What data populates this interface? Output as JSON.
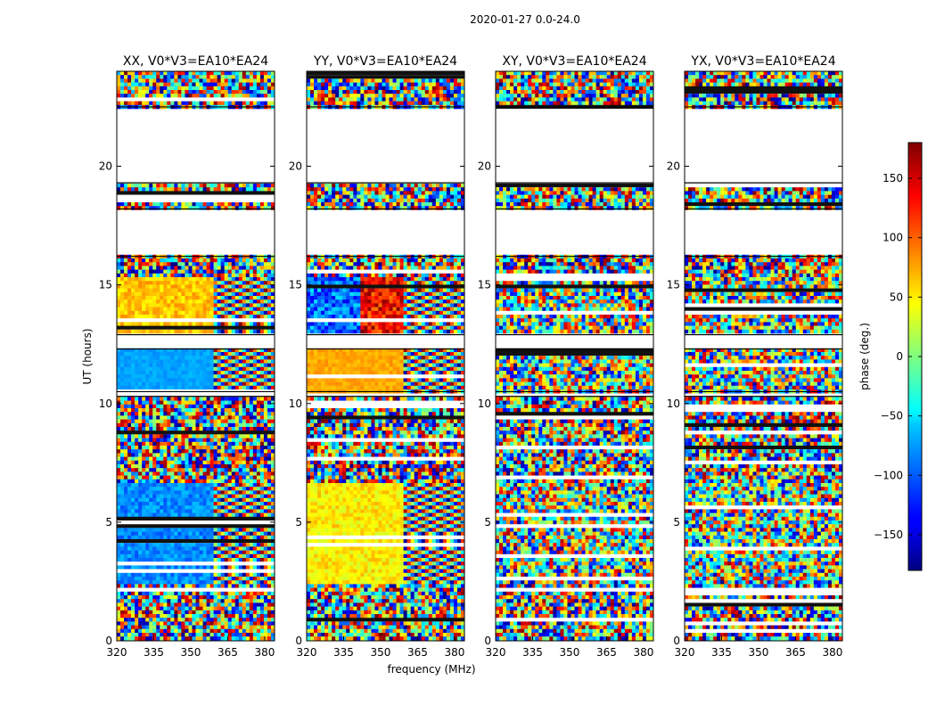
{
  "chart_data": {
    "type": "heatmap",
    "suptitle": "2020-01-27 0.0-24.0",
    "xlabel": "frequency (MHz)",
    "ylabel": "UT (hours)",
    "xlim": [
      320,
      384
    ],
    "ylim": [
      0,
      24
    ],
    "x_ticks": [
      320,
      335,
      350,
      365,
      380
    ],
    "y_ticks": [
      0,
      5,
      10,
      15,
      20
    ],
    "panels": [
      {
        "title": "XX, V0*V3=EA10*EA24",
        "pol": "XX",
        "mode": "xx"
      },
      {
        "title": "YY, V0*V3=EA10*EA24",
        "pol": "YY",
        "mode": "yy"
      },
      {
        "title": "XY, V0*V3=EA10*EA24",
        "pol": "XY",
        "mode": "noise"
      },
      {
        "title": "YX, V0*V3=EA10*EA24",
        "pol": "YX",
        "mode": "noise"
      }
    ],
    "colorbar": {
      "label": "phase (deg.)",
      "range": [
        -180,
        180
      ],
      "ticks": [
        150,
        100,
        50,
        0,
        -50,
        -100,
        -150
      ],
      "tick_labels": [
        "150",
        "100",
        "50",
        "0",
        "−50",
        "−100",
        "−150"
      ],
      "colormap": "jet"
    },
    "blank_ut_ranges": [
      [
        10.3,
        10.5
      ],
      [
        12.3,
        12.9
      ],
      [
        16.2,
        18.2
      ],
      [
        19.3,
        22.5
      ]
    ],
    "data_ut_ranges": [
      [
        0,
        10.3
      ],
      [
        10.5,
        12.3
      ],
      [
        12.9,
        16.2
      ],
      [
        18.2,
        19.3
      ],
      [
        22.5,
        24
      ]
    ],
    "calibrator_scans_ut": [
      [
        2.4,
        6.6
      ],
      [
        10.5,
        12.3
      ],
      [
        13.0,
        15.3
      ]
    ],
    "band_edge_mhz": 360
  },
  "colors": {
    "background": "#ffffff",
    "axes": "#000000",
    "flag": "#ffffff"
  }
}
